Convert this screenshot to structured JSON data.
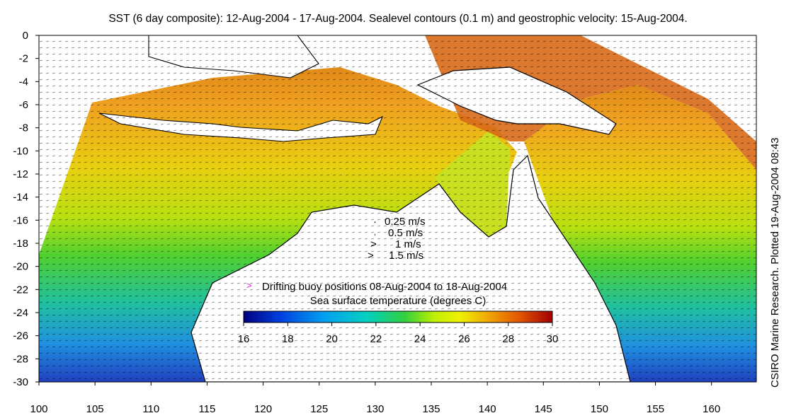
{
  "title": "SST (6 day composite): 12-Aug-2004 - 17-Aug-2004. Sealevel contours (0.1 m) and geostrophic velocity: 15-Aug-2004.",
  "side_label": "CSIRO Marine Research. Plotted 19-Aug-2004 08:43",
  "x_ticks": [
    "100",
    "105",
    "110",
    "115",
    "120",
    "125",
    "130",
    "135",
    "140",
    "145",
    "150",
    "155",
    "160"
  ],
  "y_ticks": [
    "0",
    "-2",
    "-4",
    "-6",
    "-8",
    "-10",
    "-12",
    "-14",
    "-16",
    "-18",
    "-20",
    "-22",
    "-24",
    "-26",
    "-28",
    "-30"
  ],
  "velocity_legend": [
    "0.25 m/s",
    "0.5 m/s",
    "1 m/s",
    "1.5 m/s"
  ],
  "buoy_label": "Drifting buoy positions 08-Aug-2004 to 18-Aug-2004",
  "buoy_marker": ">",
  "colorbar": {
    "label": "Sea surface temperature (degrees C)",
    "ticks": [
      "16",
      "18",
      "20",
      "22",
      "24",
      "26",
      "28",
      "30"
    ],
    "min": 16,
    "max": 30
  },
  "colors": {
    "land": "#ffffff",
    "coast": "#000000",
    "buoy": "#e020e0"
  }
}
